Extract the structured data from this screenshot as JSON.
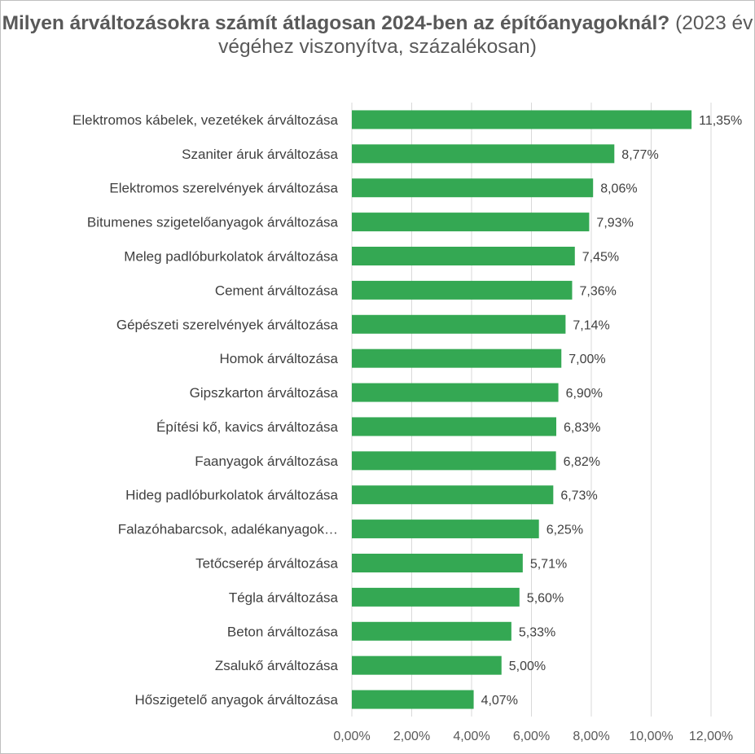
{
  "chart_data": {
    "type": "bar",
    "orientation": "horizontal",
    "title_bold": "Milyen árváltozásokra számít átlagosan 2024-ben az építőanyagoknál?",
    "title_rest": " (2023 év végéhez viszonyítva, százalékosan)",
    "categories": [
      "Elektromos kábelek, vezetékek árváltozása",
      "Szaniter áruk árváltozása",
      "Elektromos szerelvények árváltozása",
      "Bitumenes szigetelőanyagok árváltozása",
      "Meleg padlóburkolatok árváltozása",
      "Cement árváltozása",
      "Gépészeti szerelvények árváltozása",
      "Homok árváltozása",
      "Gipszkarton árváltozása",
      "Építési kő, kavics árváltozása",
      "Faanyagok árváltozása",
      "Hideg padlóburkolatok árváltozása",
      "Falazóhabarcsok, adalékanyagok…",
      "Tetőcserép árváltozása",
      "Tégla árváltozása",
      "Beton árváltozása",
      "Zsalukő árváltozása",
      "Hőszigetelő anyagok árváltozása"
    ],
    "values": [
      11.35,
      8.77,
      8.06,
      7.93,
      7.45,
      7.36,
      7.14,
      7.0,
      6.9,
      6.83,
      6.82,
      6.73,
      6.25,
      5.71,
      5.6,
      5.33,
      5.0,
      4.07
    ],
    "value_labels": [
      "11,35%",
      "8,77%",
      "8,06%",
      "7,93%",
      "7,45%",
      "7,36%",
      "7,14%",
      "7,00%",
      "6,90%",
      "6,83%",
      "6,82%",
      "6,73%",
      "6,25%",
      "5,71%",
      "5,60%",
      "5,33%",
      "5,00%",
      "4,07%"
    ],
    "x_ticks": [
      0,
      2,
      4,
      6,
      8,
      10,
      12
    ],
    "x_tick_labels": [
      "0,00%",
      "2,00%",
      "4,00%",
      "6,00%",
      "8,00%",
      "10,00%",
      "12,00%"
    ],
    "xlim": [
      0,
      12
    ],
    "xlabel": "",
    "ylabel": "",
    "grid": "vertical",
    "legend": "none",
    "bar_color": "#34a853",
    "grid_color": "#d9d9d9"
  }
}
